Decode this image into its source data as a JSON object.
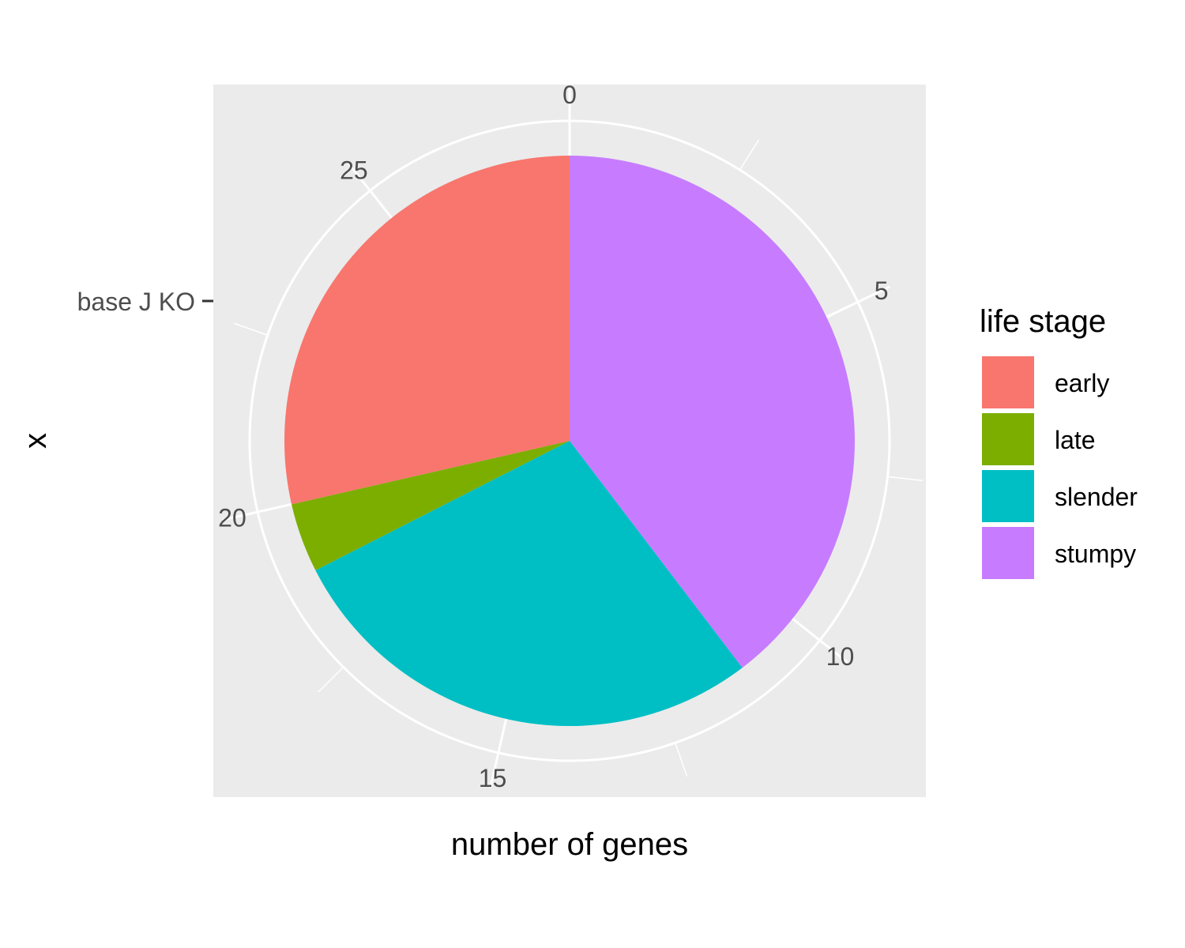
{
  "chart_data": {
    "type": "pie",
    "xlabel": "number of genes",
    "ylabel": "x",
    "category_label": "base J KO",
    "theta_axis": {
      "min": 0,
      "max": 28,
      "ticks": [
        0,
        5,
        10,
        15,
        20,
        25
      ]
    },
    "legend": {
      "title": "life stage",
      "position": "right"
    },
    "grid": true,
    "slices": [
      {
        "name": "stumpy",
        "value": 11.1,
        "color": "#C77CFF"
      },
      {
        "name": "slender",
        "value": 7.8,
        "color": "#00BFC4"
      },
      {
        "name": "late",
        "value": 1.1,
        "color": "#7CAE00"
      },
      {
        "name": "early",
        "value": 8.0,
        "color": "#F8766D"
      }
    ],
    "legend_order": [
      "early",
      "late",
      "slender",
      "stumpy"
    ]
  }
}
